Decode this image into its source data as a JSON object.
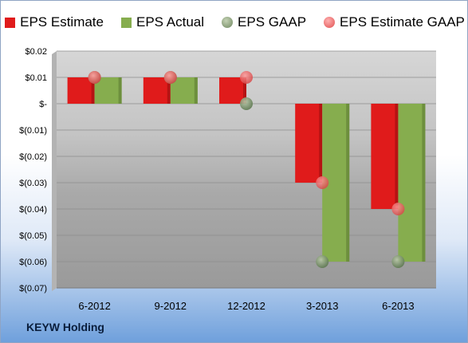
{
  "chart_data": {
    "type": "bar",
    "categories": [
      "6-2012",
      "9-2012",
      "12-2012",
      "3-2013",
      "6-2013"
    ],
    "series": [
      {
        "name": "EPS Estimate",
        "kind": "bar",
        "color": "#e01b1b",
        "values": [
          0.01,
          0.01,
          0.01,
          -0.03,
          -0.04
        ]
      },
      {
        "name": "EPS Actual",
        "kind": "bar",
        "color": "#86ad4e",
        "values": [
          0.01,
          0.01,
          0.0,
          -0.06,
          -0.06
        ]
      },
      {
        "name": "EPS GAAP",
        "kind": "marker",
        "color": "#8da27a",
        "values": [
          0.01,
          0.01,
          0.0,
          -0.06,
          -0.06
        ]
      },
      {
        "name": "EPS Estimate GAAP",
        "kind": "marker",
        "color": "#f06a6a",
        "values": [
          0.01,
          0.01,
          0.01,
          -0.03,
          -0.04
        ]
      }
    ],
    "yticks": [
      {
        "value": 0.02,
        "label": "$0.02"
      },
      {
        "value": 0.01,
        "label": "$0.01"
      },
      {
        "value": 0.0,
        "label": "$-"
      },
      {
        "value": -0.01,
        "label": "$(0.01)"
      },
      {
        "value": -0.02,
        "label": "$(0.02)"
      },
      {
        "value": -0.03,
        "label": "$(0.03)"
      },
      {
        "value": -0.04,
        "label": "$(0.04)"
      },
      {
        "value": -0.05,
        "label": "$(0.05)"
      },
      {
        "value": -0.06,
        "label": "$(0.06)"
      },
      {
        "value": -0.07,
        "label": "$(0.07)"
      }
    ],
    "ylim": [
      -0.07,
      0.02
    ],
    "grid": true,
    "legend_position": "top",
    "company": "KEYW Holding"
  }
}
